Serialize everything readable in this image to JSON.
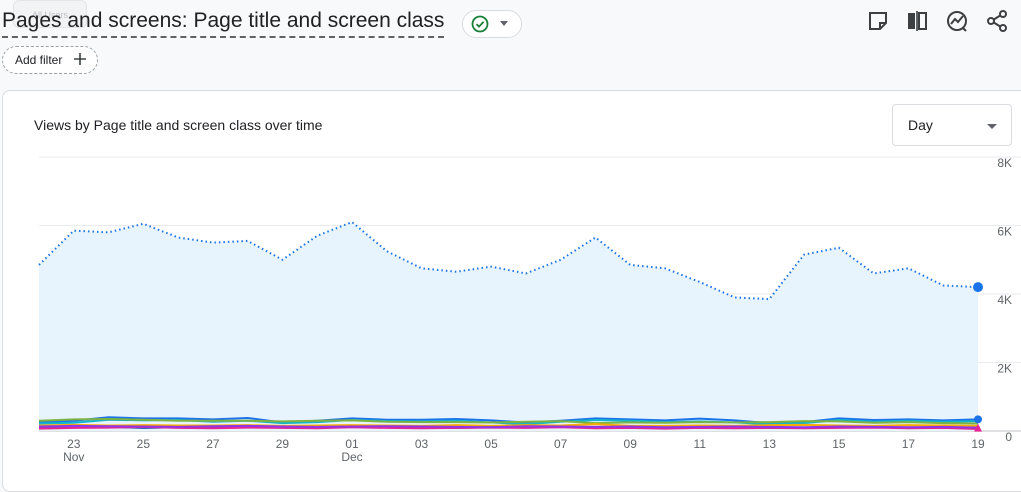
{
  "header": {
    "ghost_chip": "All Users",
    "title": "Pages and screens: Page title and screen class",
    "add_filter_label": "Add filter",
    "icons": [
      "status-check-icon",
      "chevron-down-icon",
      "edit-comparison-icon",
      "compare-columns-icon",
      "insights-icon",
      "share-icon"
    ],
    "status_color": "#188038"
  },
  "card": {
    "title": "Views by Page title and screen class over time",
    "period_select": "Day"
  },
  "chart_data": {
    "type": "line",
    "title": "Views by Page title and screen class over time",
    "x": [
      "Nov 22",
      "Nov 23",
      "Nov 24",
      "Nov 25",
      "Nov 26",
      "Nov 27",
      "Nov 28",
      "Nov 29",
      "Nov 30",
      "Dec 01",
      "Dec 02",
      "Dec 03",
      "Dec 04",
      "Dec 05",
      "Dec 06",
      "Dec 07",
      "Dec 08",
      "Dec 09",
      "Dec 10",
      "Dec 11",
      "Dec 12",
      "Dec 13",
      "Dec 14",
      "Dec 15",
      "Dec 16",
      "Dec 17",
      "Dec 18",
      "Dec 19"
    ],
    "x_tick_labels": [
      {
        "day": "23",
        "month": "Nov"
      },
      {
        "day": "25",
        "month": ""
      },
      {
        "day": "27",
        "month": ""
      },
      {
        "day": "29",
        "month": ""
      },
      {
        "day": "01",
        "month": "Dec"
      },
      {
        "day": "03",
        "month": ""
      },
      {
        "day": "05",
        "month": ""
      },
      {
        "day": "07",
        "month": ""
      },
      {
        "day": "09",
        "month": ""
      },
      {
        "day": "11",
        "month": ""
      },
      {
        "day": "13",
        "month": ""
      },
      {
        "day": "15",
        "month": ""
      },
      {
        "day": "17",
        "month": ""
      },
      {
        "day": "19",
        "month": ""
      }
    ],
    "y_ticks": [
      "0",
      "2K",
      "4K",
      "6K",
      "8K"
    ],
    "ylim": [
      0,
      8000
    ],
    "grid": true,
    "series": [
      {
        "color": "#1a73e8",
        "style": "dotted",
        "fill": "#e8f4fd",
        "values": [
          4850,
          5850,
          5800,
          6050,
          5650,
          5500,
          5550,
          5000,
          5700,
          6100,
          5250,
          4750,
          4650,
          4800,
          4600,
          5000,
          5650,
          4850,
          4750,
          4350,
          3900,
          3850,
          5150,
          5350,
          4600,
          4750,
          4250,
          4200
        ]
      },
      {
        "color": "#1a73e8",
        "style": "solid",
        "values": [
          250,
          300,
          400,
          370,
          370,
          340,
          380,
          250,
          300,
          370,
          330,
          330,
          350,
          310,
          250,
          300,
          370,
          340,
          310,
          360,
          310,
          230,
          260,
          370,
          320,
          340,
          310,
          340
        ]
      },
      {
        "color": "#12b5cb",
        "style": "solid",
        "values": [
          220,
          240,
          330,
          310,
          320,
          270,
          300,
          230,
          260,
          320,
          290,
          280,
          300,
          250,
          200,
          270,
          320,
          300,
          260,
          280,
          250,
          200,
          230,
          320,
          270,
          300,
          270,
          290
        ]
      },
      {
        "color": "#7cb342",
        "style": "solid",
        "values": [
          300,
          340,
          350,
          330,
          300,
          300,
          300,
          280,
          300,
          310,
          270,
          260,
          260,
          250,
          270,
          290,
          230,
          250,
          240,
          260,
          250,
          260,
          290,
          280,
          240,
          260,
          230,
          220
        ]
      },
      {
        "color": "#f9ab00",
        "style": "solid",
        "values": [
          160,
          180,
          160,
          170,
          160,
          160,
          170,
          150,
          160,
          170,
          160,
          150,
          170,
          150,
          170,
          160,
          200,
          150,
          150,
          160,
          150,
          170,
          180,
          160,
          150,
          170,
          160,
          150
        ]
      },
      {
        "color": "#174ea6",
        "style": "solid",
        "values": [
          100,
          110,
          120,
          90,
          110,
          100,
          110,
          100,
          90,
          120,
          110,
          100,
          90,
          110,
          100,
          120,
          110,
          100,
          90,
          100,
          110,
          90,
          100,
          120,
          110,
          100,
          90,
          80
        ]
      },
      {
        "color": "#e52592",
        "style": "solid",
        "values": [
          70,
          90,
          100,
          120,
          90,
          80,
          100,
          90,
          80,
          110,
          90,
          80,
          90,
          100,
          90,
          110,
          80,
          90,
          70,
          90,
          80,
          90,
          80,
          90,
          100,
          80,
          90,
          60
        ]
      },
      {
        "color": "#9334e6",
        "style": "solid",
        "values": [
          130,
          150,
          140,
          130,
          120,
          140,
          150,
          130,
          120,
          130,
          140,
          130,
          120,
          110,
          140,
          130,
          120,
          130,
          110,
          120,
          130,
          120,
          110,
          130,
          120,
          110,
          120,
          100
        ]
      }
    ]
  }
}
